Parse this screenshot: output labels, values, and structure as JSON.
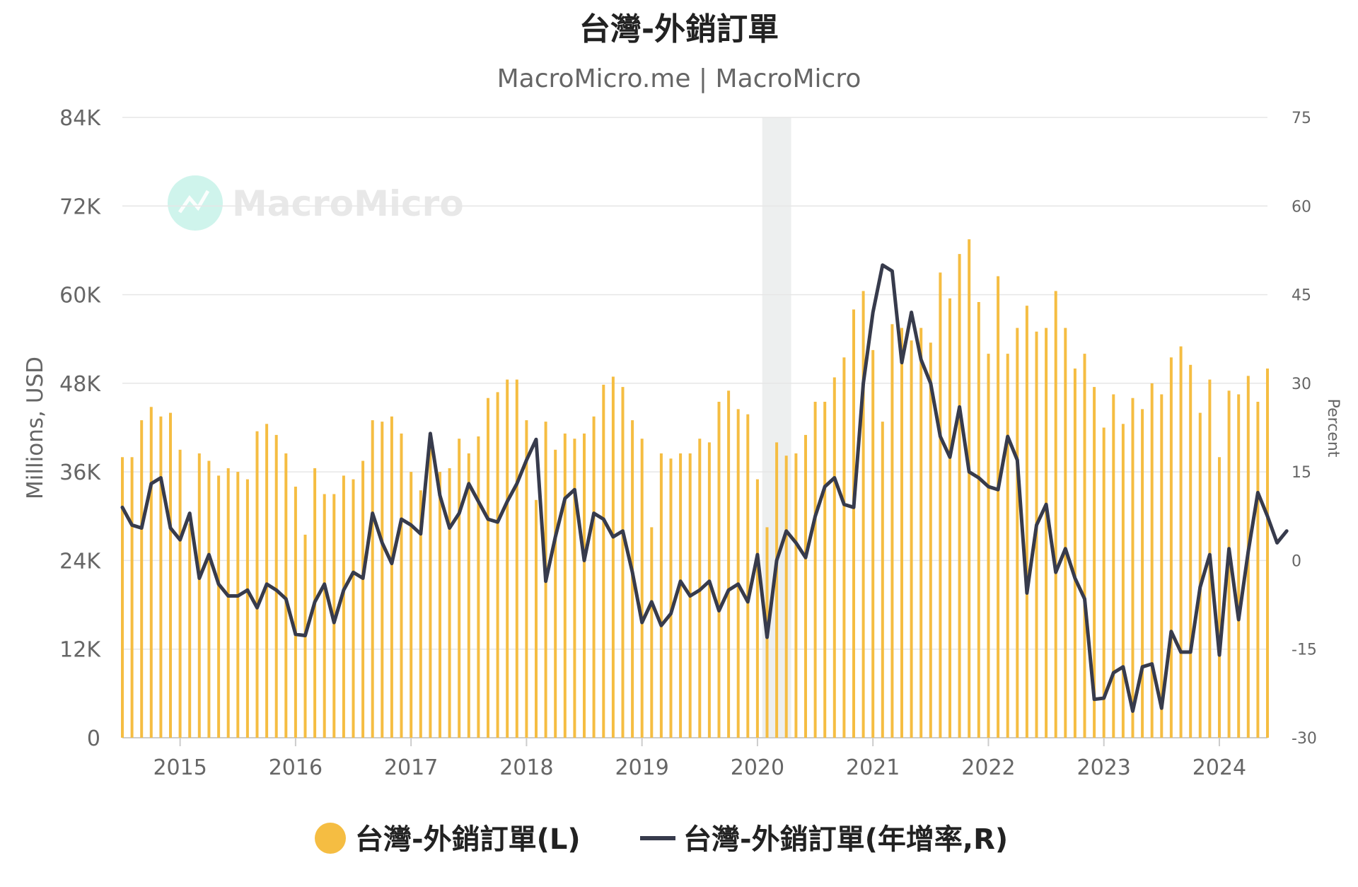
{
  "chart_data": {
    "type": "bar+line",
    "title": "台灣-外銷訂單",
    "subtitle": "MacroMicro.me | MacroMicro",
    "watermark": "MacroMicro",
    "ylabel_left": "Millions, USD",
    "ylabel_right": "Percent",
    "yticks_left": [
      "0",
      "12K",
      "24K",
      "36K",
      "48K",
      "60K",
      "72K",
      "84K"
    ],
    "yticks_right": [
      "-30",
      "-15",
      "0",
      "15",
      "30",
      "45",
      "60",
      "75"
    ],
    "ylim_left": [
      0,
      84000
    ],
    "ylim_right": [
      -30,
      75
    ],
    "xticks": [
      "2015",
      "2016",
      "2017",
      "2018",
      "2019",
      "2020",
      "2021",
      "2022",
      "2023",
      "2024"
    ],
    "x_start": "2014-07",
    "recession_shading": [
      "2020-02",
      "2020-04"
    ],
    "grid": true,
    "legend_position": "bottom",
    "legend": [
      "台灣-外銷訂單(L)",
      "台灣-外銷訂單(年增率,R)"
    ],
    "colors": {
      "bars": "#F5BD42",
      "line": "#373B4C",
      "recession": "#EDEFEF",
      "grid": "#E6E6E6",
      "watermark": "#A8EBDD"
    },
    "series": [
      {
        "name": "台灣-外銷訂單(L)",
        "type": "bar",
        "axis": "left",
        "values": [
          38000,
          38000,
          43000,
          44800,
          43500,
          44000,
          39000,
          29000,
          38500,
          37500,
          35500,
          36500,
          36000,
          35000,
          41500,
          42500,
          41000,
          38500,
          34000,
          27500,
          36500,
          33000,
          33000,
          35500,
          35000,
          37500,
          43000,
          42800,
          43500,
          41200,
          36000,
          33500,
          41000,
          36000,
          36500,
          40500,
          38500,
          40800,
          46000,
          46800,
          48500,
          48500,
          43000,
          32200,
          42800,
          39000,
          41200,
          40500,
          41200,
          43500,
          47800,
          48900,
          47500,
          43000,
          40500,
          28500,
          38500,
          37800,
          38500,
          38500,
          40500,
          40000,
          45500,
          47000,
          44500,
          43800,
          35000,
          28500,
          40000,
          38200,
          38500,
          41000,
          45500,
          45500,
          48800,
          51500,
          58000,
          60500,
          52500,
          42800,
          56000,
          55500,
          53800,
          55500,
          53500,
          63000,
          59500,
          65500,
          67500,
          59000,
          52000,
          62500,
          52000,
          55500,
          58500,
          55000,
          55500,
          60500,
          55500,
          50000,
          52000,
          47500,
          42000,
          46500,
          42500,
          46000,
          44500,
          48000,
          46500,
          51500,
          53000,
          50500,
          44000,
          48500,
          38000,
          47000,
          46500,
          49000,
          45500,
          50000
        ]
      },
      {
        "name": "台灣-外銷訂單(年增率,R)",
        "type": "line",
        "axis": "right",
        "values": [
          9,
          6,
          5.5,
          13,
          14,
          5.5,
          3.5,
          8,
          -3,
          1,
          -4,
          -6,
          -6,
          -5,
          -8,
          -4,
          -5,
          -6.5,
          -12.5,
          -12.7,
          -7,
          -4,
          -10.5,
          -5,
          -2,
          -3,
          8,
          3,
          -0.5,
          7,
          6,
          4.5,
          21.5,
          11,
          5.5,
          8,
          13,
          10,
          7,
          6.5,
          10,
          13,
          17,
          20.5,
          -3.5,
          4,
          10.5,
          12,
          0,
          8,
          7,
          4,
          5,
          -2,
          -10.5,
          -7,
          -11,
          -9,
          -3.5,
          -6,
          -5,
          -3.5,
          -8.5,
          -5,
          -4,
          -7,
          1,
          -13,
          0,
          5,
          3,
          0.5,
          7.5,
          12.5,
          14,
          9.5,
          9,
          30,
          42,
          50,
          49,
          33.5,
          42,
          34,
          30,
          21,
          17.5,
          26,
          15,
          14,
          12.5,
          12,
          21,
          17,
          -5.5,
          6,
          9.5,
          -2,
          2,
          -3,
          -6.5,
          -23.5,
          -23.3,
          -19,
          -18,
          -25.5,
          -18,
          -17.5,
          -25,
          -12,
          -15.5,
          -15.5,
          -4.5,
          1,
          -16,
          2,
          -10,
          1.5,
          11.5,
          7.5,
          3,
          5
        ]
      }
    ]
  }
}
